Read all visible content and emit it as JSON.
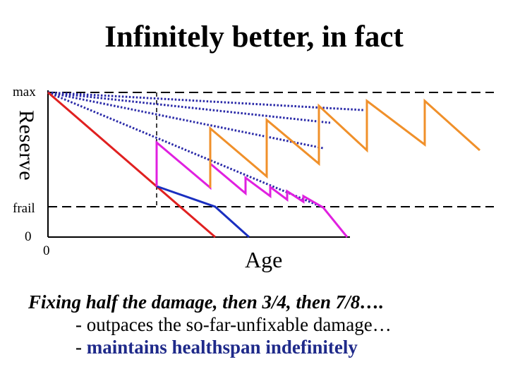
{
  "title": "Infinitely better, in fact",
  "axes": {
    "y_label": "Reserve",
    "x_label": "Age",
    "y_max": "max",
    "y_frail": "frail",
    "y_zero": "0",
    "x_zero": "0"
  },
  "caption": {
    "line1": "Fixing half the damage, then 3/4, then 7/8….",
    "line2": "- outpaces the so-far-unfixable damage…",
    "line3_prefix": "- ",
    "line3_highlight": "maintains healthspan indefinitely"
  },
  "colors": {
    "untreated": "#e02020",
    "magenta": "#e020e0",
    "blue": "#1a2fc0",
    "orange": "#f0902a",
    "dotted": "#2a2aa8",
    "guide": "#000000"
  }
}
